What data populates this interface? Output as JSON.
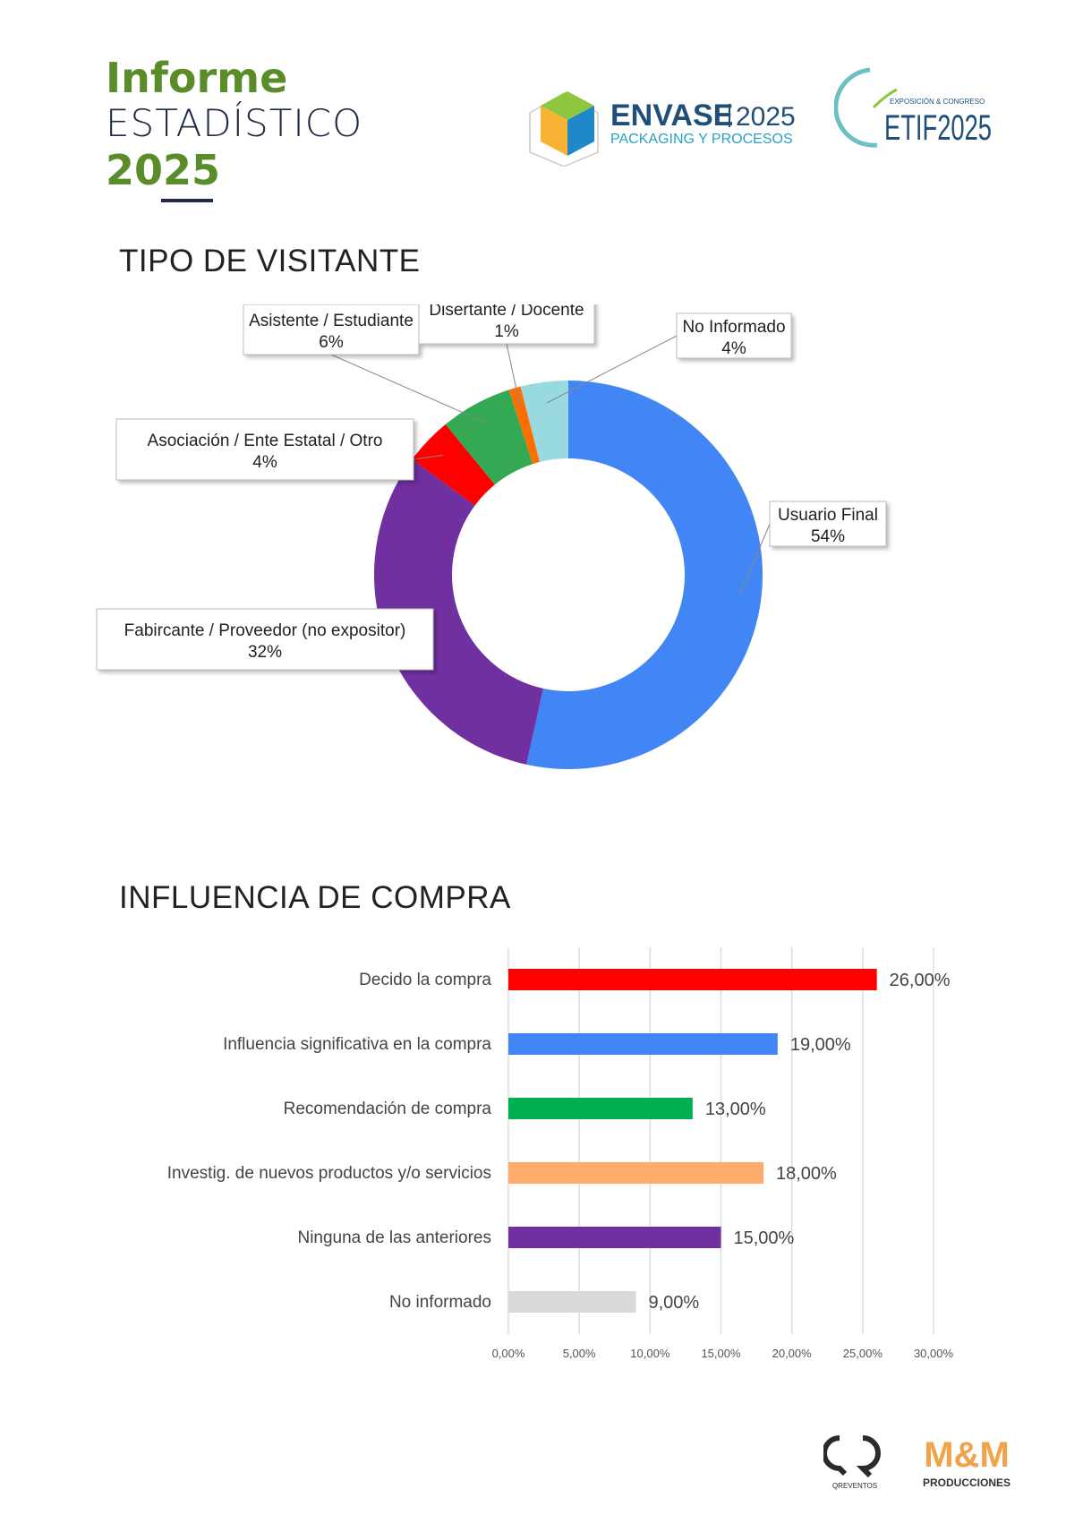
{
  "header": {
    "title_line1": "Informe",
    "title_line2": "ESTADÍSTICO",
    "title_line3": "2025",
    "logo_envase_name": "ENVASE",
    "logo_envase_year": "2025",
    "logo_envase_sub": "PACKAGING Y PROCESOS",
    "logo_etif_top": "EXPOSICIÓN & CONGRESO",
    "logo_etif_name": "ETIF2025"
  },
  "sections": {
    "visitor_title": "TIPO DE VISITANTE",
    "purchase_title": "INFLUENCIA DE COMPRA"
  },
  "footer": {
    "qr_brand": "QREVENTOS",
    "mm_brand": "M&M",
    "mm_sub": "PRODUCCIONES"
  },
  "colors": {
    "accent_green": "#5b8c2a",
    "navy": "#1f2a44"
  },
  "chart_data": [
    {
      "type": "pie",
      "title": "",
      "slices": [
        {
          "label": "Usuario Final",
          "value": 54,
          "value_label": "54%",
          "color": "#4285f4"
        },
        {
          "label": "Fabircante / Proveedor (no expositor)",
          "value": 32,
          "value_label": "32%",
          "color": "#7030a0"
        },
        {
          "label": "Asociación / Ente Estatal / Otro",
          "value": 4,
          "value_label": "4%",
          "color": "#ff0000"
        },
        {
          "label": "Asistente / Estudiante",
          "value": 6,
          "value_label": "6%",
          "color": "#34a853"
        },
        {
          "label": "Disertante / Docente",
          "value": 1,
          "value_label": "1%",
          "color": "#ff6d01"
        },
        {
          "label": "No Informado",
          "value": 4,
          "value_label": "4%",
          "color": "#99d9e0"
        }
      ]
    },
    {
      "type": "bar",
      "orientation": "horizontal",
      "title": "",
      "categories": [
        "Decido la compra",
        "Influencia significativa en la compra",
        "Recomendación de compra",
        "Investig. de nuevos productos y/o servicios",
        "Ninguna de las anteriores",
        "No informado"
      ],
      "values": [
        26,
        19,
        13,
        18,
        15,
        9
      ],
      "value_labels": [
        "26,00%",
        "19,00%",
        "13,00%",
        "18,00%",
        "15,00%",
        "9,00%"
      ],
      "colors": [
        "#ff0000",
        "#4285f4",
        "#00b050",
        "#ffab6e",
        "#7030a0",
        "#d9d9d9"
      ],
      "xlim": [
        0,
        30
      ],
      "xticks": [
        "0,00%",
        "5,00%",
        "10,00%",
        "15,00%",
        "20,00%",
        "25,00%",
        "30,00%"
      ],
      "grid": true
    }
  ]
}
